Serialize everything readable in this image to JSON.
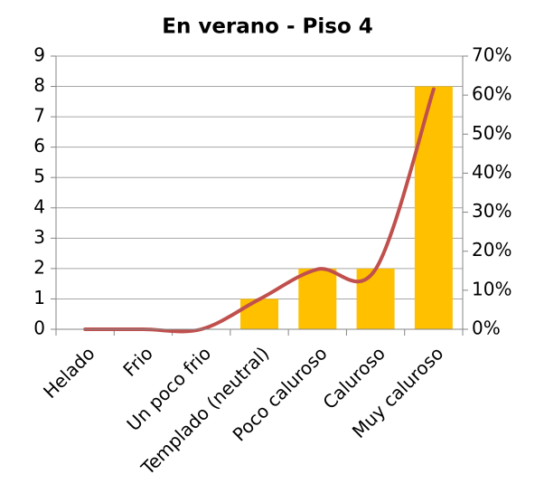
{
  "chart_data": {
    "type": "bar",
    "title": "En verano - Piso 4",
    "categories": [
      "Helado",
      "Frio",
      "Un poco frio",
      "Templado (neutral)",
      "Poco caluroso",
      "Caluroso",
      "Muy caluroso"
    ],
    "series": [
      {
        "type": "bar",
        "color": "#FFC000",
        "values": [
          0,
          0,
          0,
          1,
          2,
          2,
          8
        ]
      },
      {
        "type": "line",
        "axis": "y2",
        "color": "#C0504D",
        "values": [
          0,
          0,
          0,
          7.69,
          15.38,
          15.38,
          61.54
        ]
      }
    ],
    "ylim": [
      0,
      9
    ],
    "yticks": [
      0,
      1,
      2,
      3,
      4,
      5,
      6,
      7,
      8,
      9
    ],
    "y2lim": [
      0,
      70
    ],
    "y2ticks": [
      {
        "value": 0,
        "label": "0%"
      },
      {
        "value": 10,
        "label": "10%"
      },
      {
        "value": 20,
        "label": "20%"
      },
      {
        "value": 30,
        "label": "30%"
      },
      {
        "value": 40,
        "label": "40%"
      },
      {
        "value": 50,
        "label": "50%"
      },
      {
        "value": 60,
        "label": "60%"
      },
      {
        "value": 70,
        "label": "70%"
      }
    ],
    "grid": true
  }
}
